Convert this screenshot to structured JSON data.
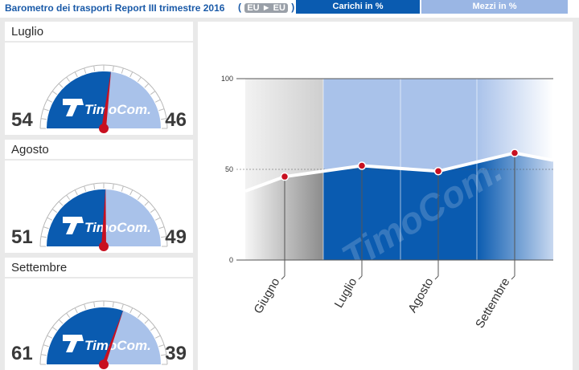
{
  "header": {
    "title": "Barometro dei trasporti Report III trimestre 2016",
    "route_open": "(",
    "route_from": "EU",
    "route_arrow": "►",
    "route_to": "EU",
    "route_close": ")",
    "tab_loads": "Carichi in %",
    "tab_trucks": "Mezzi in %"
  },
  "brand": "TimoCom.",
  "months": [
    {
      "label": "Luglio",
      "loads": 54,
      "trucks": 46
    },
    {
      "label": "Agosto",
      "loads": 51,
      "trucks": 49
    },
    {
      "label": "Settembre",
      "loads": 61,
      "trucks": 39
    }
  ],
  "chart_data": {
    "type": "line",
    "categories": [
      "Giugno",
      "Luglio",
      "Agosto",
      "Settembre"
    ],
    "series": [
      {
        "values": [
          46,
          52,
          49,
          59
        ]
      }
    ],
    "trend_edges": [
      38,
      55
    ],
    "ylim": [
      0,
      100
    ],
    "yticks": [
      0,
      50,
      100
    ],
    "colors": {
      "loads": "#0a5bb0",
      "trucks": "#a9c2ea",
      "marker": "#c81020"
    }
  }
}
